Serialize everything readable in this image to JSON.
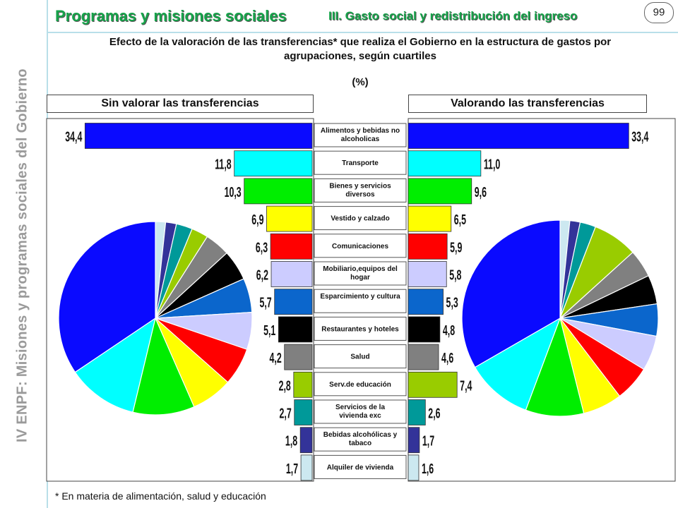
{
  "sidebar": {
    "text": "IV ENPF:  Misiones y programas sociales del Gobierno",
    "band_color": "#ffffff"
  },
  "header": {
    "title": "Programas y misiones sociales",
    "subtitle": "III. Gasto social y redistribución del ingreso",
    "page_number": "99"
  },
  "footnote": "* En materia de alimentación,  salud y educación",
  "chart_data": {
    "type": "bar",
    "title": "Efecto de la valoración de las transferencias* que realiza el Gobierno en la estructura de gastos por agrupaciones, según cuartiles",
    "unit": "(%)",
    "categories": [
      "Alimentos y bebidas no alcoholicas",
      "Transporte",
      "Bienes y servicios diversos",
      "Vestido y calzado",
      "Comunicaciones",
      "Mobiliario,equipos del hogar",
      "Esparcimiento y cultura",
      "Restaurantes y hoteles",
      "Salud",
      "Serv.de educación",
      "Servicios de la vivienda exc",
      "Bebidas alcohólicas y tabaco",
      "Alquiler de vivienda"
    ],
    "colors": [
      "#0a0aff",
      "#00ffff",
      "#00ee00",
      "#ffff00",
      "#ff0000",
      "#ccccff",
      "#0b66cc",
      "#000000",
      "#808080",
      "#99cc00",
      "#009999",
      "#333399",
      "#cce8f0"
    ],
    "series": [
      {
        "name": "Sin valorar las transferencias",
        "values": [
          34.4,
          11.8,
          10.3,
          6.9,
          6.3,
          6.2,
          5.7,
          5.1,
          4.2,
          2.8,
          2.7,
          1.8,
          1.7
        ],
        "labels": [
          "34,4",
          "11,8",
          "10,3",
          "6,9",
          "6,3",
          "6,2",
          "5,7",
          "5,1",
          "4,2",
          "2,8",
          "2,7",
          "1,8",
          "1,7"
        ]
      },
      {
        "name": "Valorando las transferencias",
        "values": [
          33.4,
          11.0,
          9.6,
          6.5,
          5.9,
          5.8,
          5.3,
          4.8,
          4.6,
          7.4,
          2.6,
          1.7,
          1.6
        ],
        "labels": [
          "33,4",
          "11,0",
          "9,6",
          "6,5",
          "5,9",
          "5,8",
          "5,3",
          "4,8",
          "4,6",
          "7,4",
          "2,6",
          "1,7",
          "1,6"
        ]
      }
    ],
    "pie_order": [
      12,
      11,
      10,
      9,
      8,
      7,
      6,
      5,
      4,
      3,
      2,
      1,
      0
    ]
  }
}
